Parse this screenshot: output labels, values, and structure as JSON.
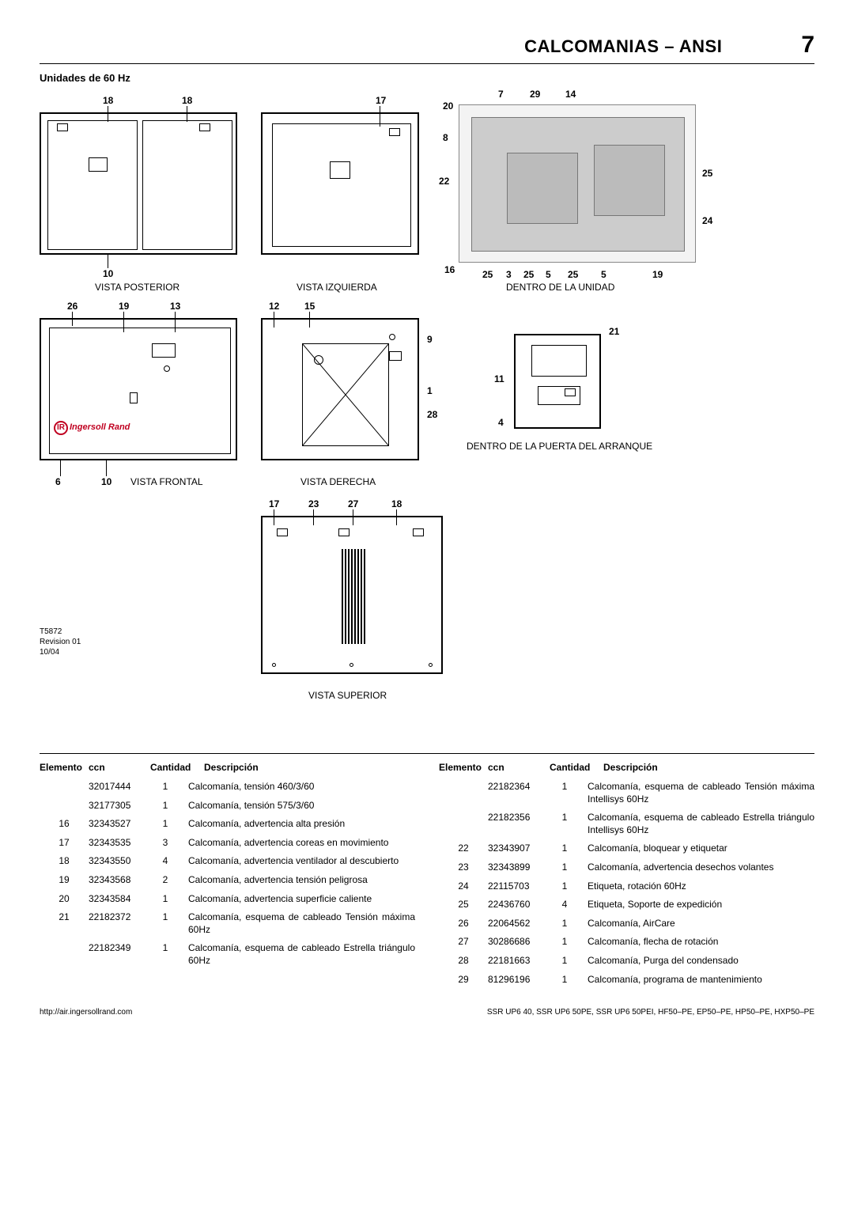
{
  "header": {
    "title": "CALCOMANIAS – ANSI",
    "page": "7"
  },
  "subhead": "Unidades de 60 Hz",
  "captions": {
    "posterior": "VISTA POSTERIOR",
    "izquierda": "VISTA IZQUIERDA",
    "dentro_unidad": "DENTRO DE LA UNIDAD",
    "frontal": "VISTA FRONTAL",
    "derecha": "VISTA DERECHA",
    "dentro_puerta": "DENTRO DE LA PUERTA DEL ARRANQUE",
    "superior": "VISTA SUPERIOR"
  },
  "callouts": {
    "posterior_top": [
      "18",
      "18"
    ],
    "posterior_bot": [
      "10"
    ],
    "izquierda_top": [
      "17"
    ],
    "dentro_top": [
      "20",
      "7",
      "29",
      "14"
    ],
    "dentro_left": [
      "8",
      "22"
    ],
    "dentro_right": [
      "25",
      "24"
    ],
    "dentro_bot": [
      "16",
      "25",
      "3",
      "25",
      "5",
      "25",
      "5",
      "19"
    ],
    "frontal_top": [
      "26",
      "19",
      "13"
    ],
    "frontal_bot": [
      "6",
      "10"
    ],
    "derecha_top": [
      "12",
      "15"
    ],
    "derecha_right": [
      "9",
      "1",
      "28"
    ],
    "puerta_right": [
      "21",
      "11",
      "4"
    ],
    "superior_top": [
      "17",
      "23",
      "27",
      "18"
    ]
  },
  "brand": "Ingersoll Rand",
  "rev": [
    "T5872",
    "Revision 01",
    "10/04"
  ],
  "table": {
    "headers": {
      "el": "Elemento",
      "ccn": "ccn",
      "qty": "Cantidad",
      "desc": "Descripción"
    },
    "left": [
      {
        "el": "",
        "ccn": "32017444",
        "qty": "1",
        "desc": "Calcomanía, tensión 460/3/60"
      },
      {
        "el": "",
        "ccn": "32177305",
        "qty": "1",
        "desc": "Calcomanía, tensión 575/3/60"
      },
      {
        "el": "16",
        "ccn": "32343527",
        "qty": "1",
        "desc": "Calcomanía, advertencia alta presión"
      },
      {
        "el": "17",
        "ccn": "32343535",
        "qty": "3",
        "desc": "Calcomanía, advertencia coreas en movimiento"
      },
      {
        "el": "18",
        "ccn": "32343550",
        "qty": "4",
        "desc": "Calcomanía, advertencia ventilador al descubierto"
      },
      {
        "el": "19",
        "ccn": "32343568",
        "qty": "2",
        "desc": "Calcomanía, advertencia tensión peligrosa"
      },
      {
        "el": "20",
        "ccn": "32343584",
        "qty": "1",
        "desc": "Calcomanía, advertencia superficie caliente"
      },
      {
        "el": "21",
        "ccn": "22182372",
        "qty": "1",
        "desc": "Calcomanía, esquema de cableado Tensión máxima 60Hz"
      },
      {
        "el": "",
        "ccn": "22182349",
        "qty": "1",
        "desc": "Calcomanía, esquema de cableado Estrella triángulo 60Hz"
      }
    ],
    "right": [
      {
        "el": "",
        "ccn": "22182364",
        "qty": "1",
        "desc": "Calcomanía, esquema de cableado Tensión máxima Intellisys 60Hz"
      },
      {
        "el": "",
        "ccn": "22182356",
        "qty": "1",
        "desc": "Calcomanía, esquema de cableado Estrella triángulo Intellisys 60Hz"
      },
      {
        "el": "22",
        "ccn": "32343907",
        "qty": "1",
        "desc": "Calcomanía, bloquear y etiquetar"
      },
      {
        "el": "23",
        "ccn": "32343899",
        "qty": "1",
        "desc": "Calcomanía, advertencia desechos volantes"
      },
      {
        "el": "24",
        "ccn": "22115703",
        "qty": "1",
        "desc": "Etiqueta, rotación 60Hz"
      },
      {
        "el": "25",
        "ccn": "22436760",
        "qty": "4",
        "desc": "Etiqueta, Soporte de expedición"
      },
      {
        "el": "26",
        "ccn": "22064562",
        "qty": "1",
        "desc": "Calcomanía, AirCare"
      },
      {
        "el": "27",
        "ccn": "30286686",
        "qty": "1",
        "desc": "Calcomanía, flecha de rotación"
      },
      {
        "el": "28",
        "ccn": "22181663",
        "qty": "1",
        "desc": "Calcomanía, Purga del condensado"
      },
      {
        "el": "29",
        "ccn": "81296196",
        "qty": "1",
        "desc": "Calcomanía, programa de mantenimiento"
      }
    ]
  },
  "footer": {
    "url": "http://air.ingersollrand.com",
    "models": "SSR UP6 40, SSR UP6 50PE, SSR UP6 50PEI, HF50–PE, EP50–PE, HP50–PE, HXP50–PE"
  }
}
